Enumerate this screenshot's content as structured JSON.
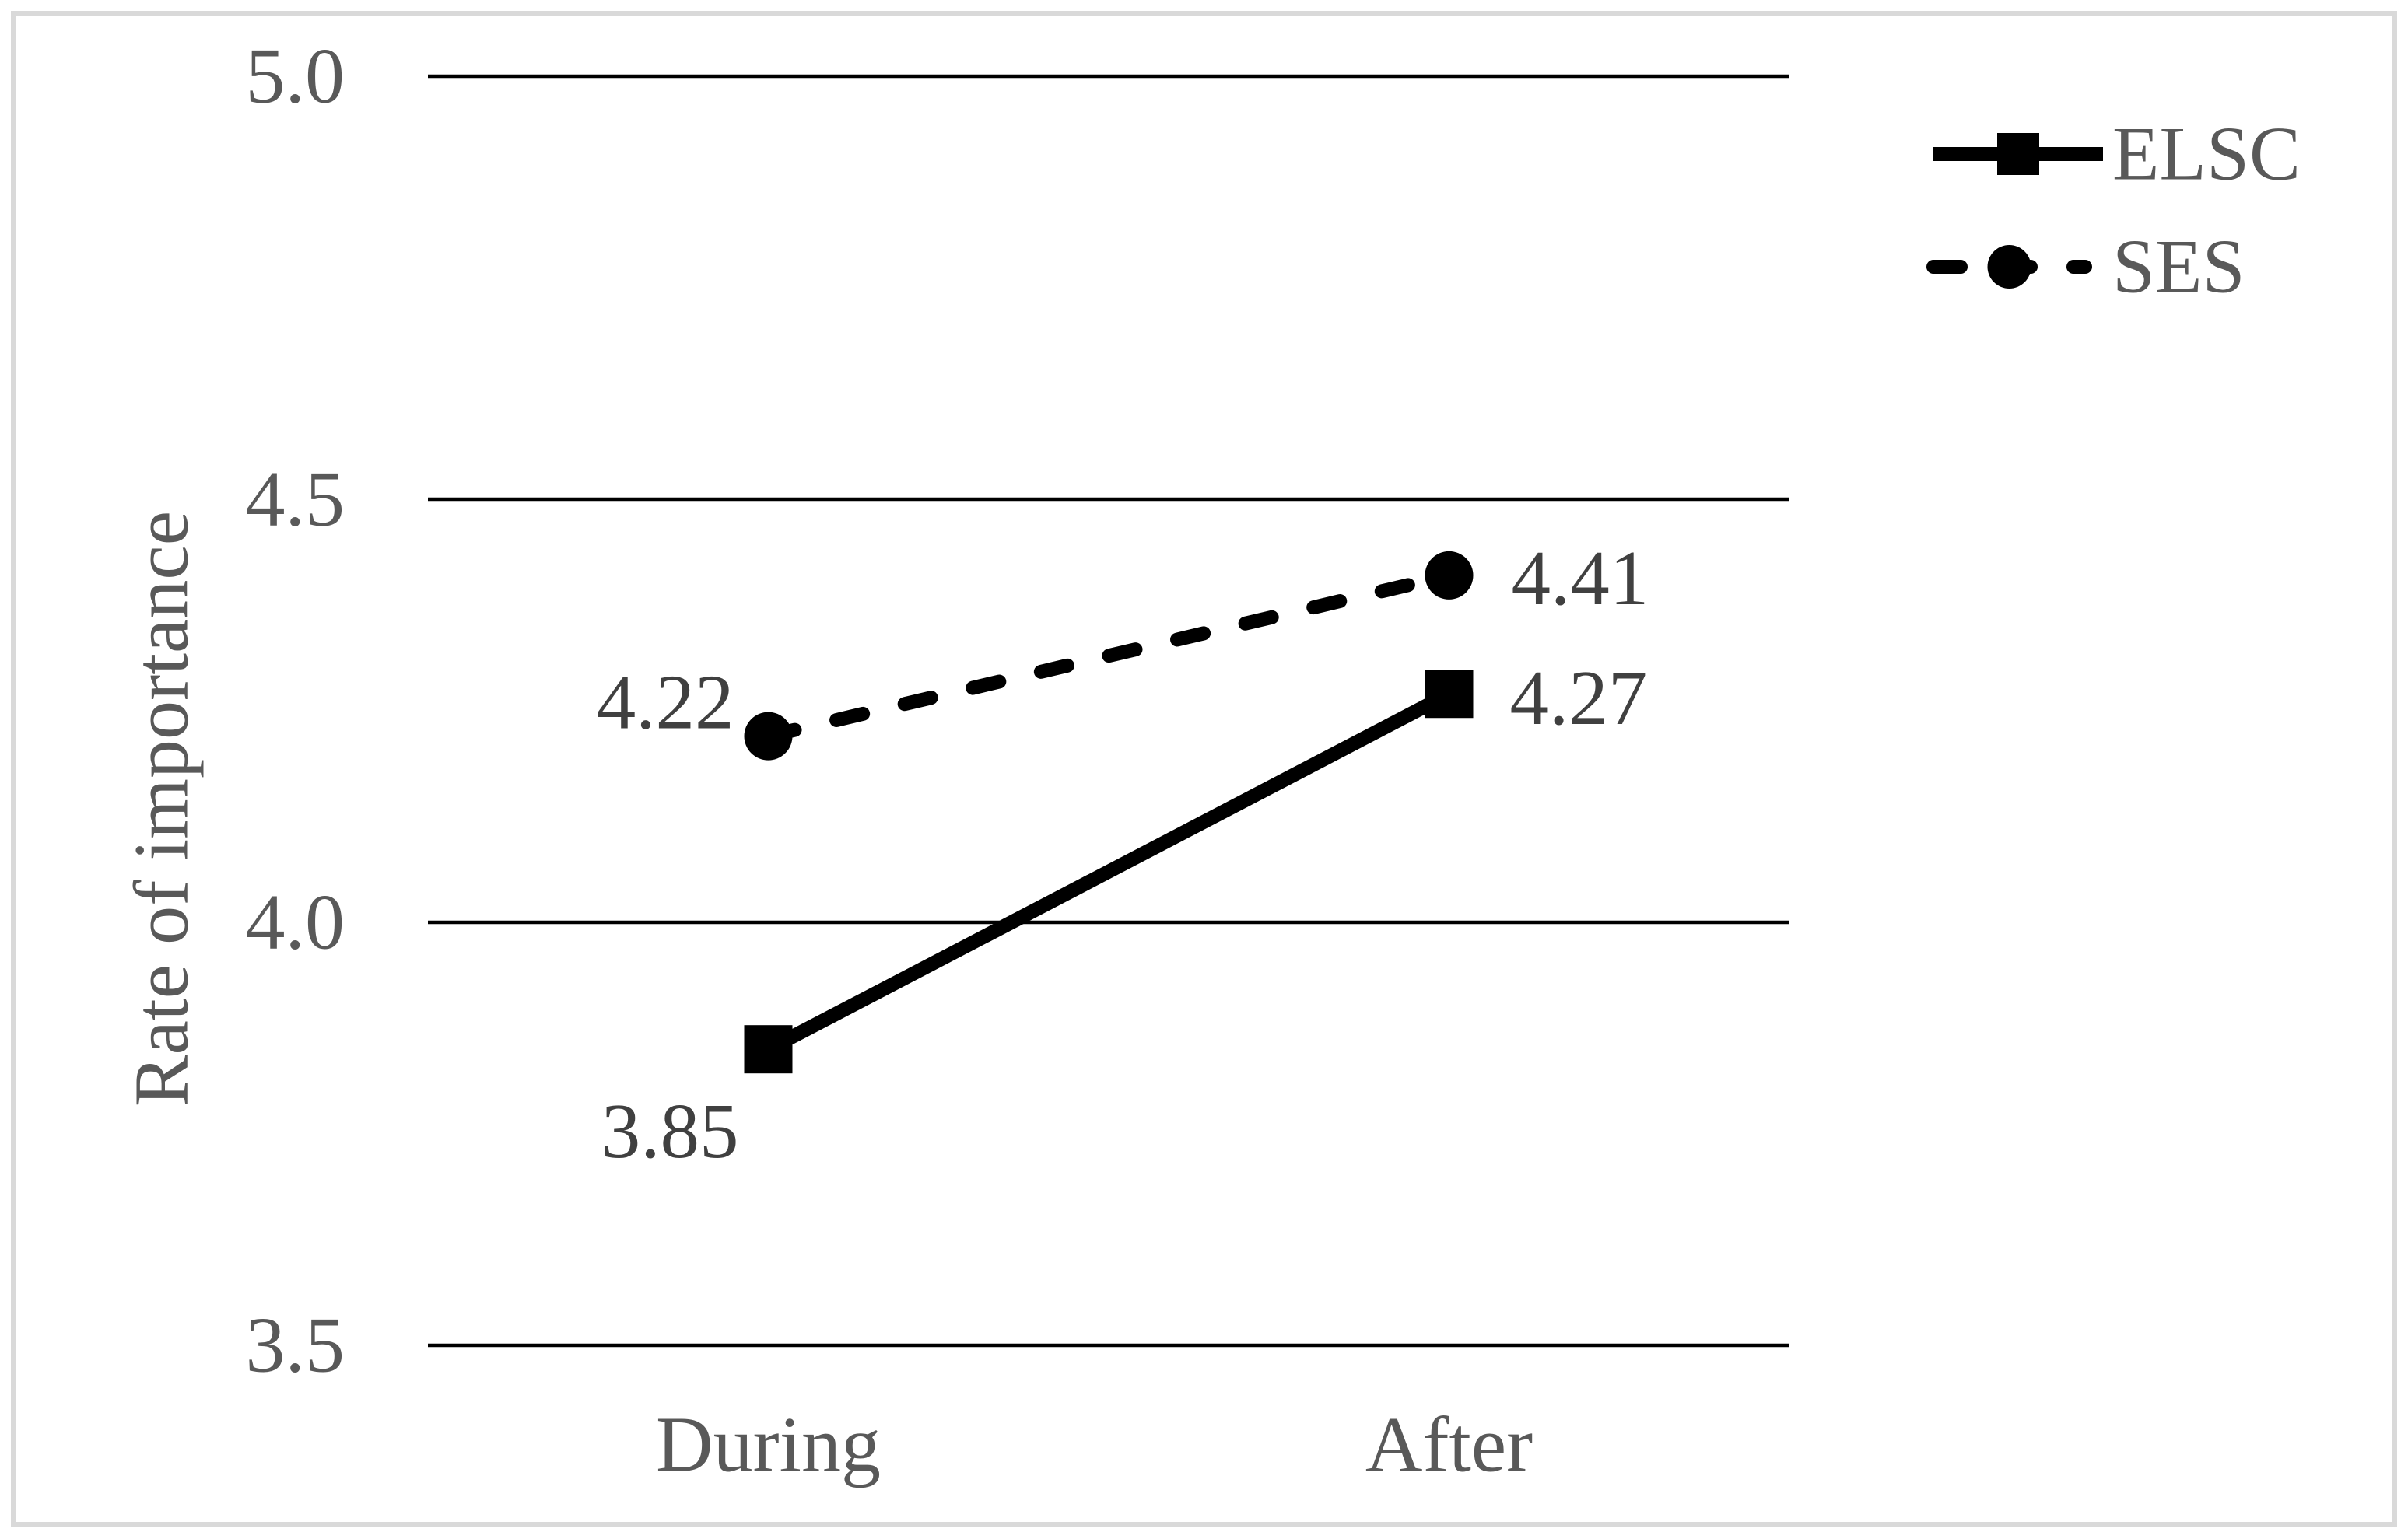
{
  "figure": {
    "background": "#ffffff",
    "border_color": "#d9d9d9"
  },
  "chart_data": {
    "type": "line",
    "title": "",
    "xlabel": "",
    "ylabel": "Rate of importance",
    "categories": [
      "During",
      "After"
    ],
    "series": [
      {
        "name": "ELSC",
        "values": [
          3.85,
          4.27
        ],
        "data_labels": [
          "3.85",
          "4.27"
        ],
        "line_style": "solid",
        "marker": "square",
        "label_placement": [
          {
            "anchor": "end",
            "dx": -38,
            "dy": 105
          },
          {
            "anchor": "start",
            "dx": 78,
            "dy": 5
          }
        ]
      },
      {
        "name": "SES",
        "values": [
          4.22,
          4.41
        ],
        "data_labels": [
          "4.22",
          "4.41"
        ],
        "line_style": "dashed",
        "marker": "circle",
        "label_placement": [
          {
            "anchor": "end",
            "dx": -44,
            "dy": -44
          },
          {
            "anchor": "start",
            "dx": 80,
            "dy": 3
          }
        ]
      }
    ],
    "y_axis": {
      "min": 3.5,
      "max": 5.0,
      "tick_step": 0.5,
      "tick_values": [
        5.0,
        4.5,
        4.0,
        3.5
      ],
      "tick_labels": [
        "5.0",
        "4.5",
        "4.0",
        "3.5"
      ]
    },
    "grid": {
      "horizontal": true,
      "vertical": false
    },
    "legend": {
      "position": "top-right",
      "entries": [
        "ELSC",
        "SES"
      ]
    },
    "colors": {
      "series": "#000000",
      "grid": "#000000",
      "tick_text": "#595959",
      "data_label_text": "#404040"
    }
  }
}
